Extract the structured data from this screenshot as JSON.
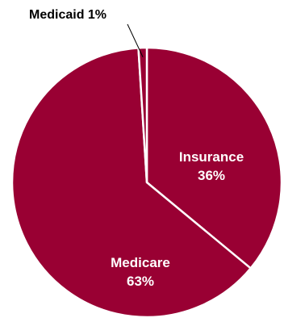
{
  "chart_data": {
    "type": "pie",
    "title": "",
    "slices": [
      {
        "label": "Insurance",
        "value": 36,
        "value_label": "36%",
        "color": "#990033"
      },
      {
        "label": "Medicare",
        "value": 63,
        "value_label": "63%",
        "color": "#990033"
      },
      {
        "label": "Medicaid",
        "value": 1,
        "value_label": "1%",
        "color": "#990033"
      }
    ],
    "start": "12 o'clock",
    "direction": "clockwise",
    "slice_border_color": "#ffffff",
    "callout_line_color": "#000000",
    "label_color_inside": "#ffffff",
    "label_color_outside": "#000000",
    "legend": "none"
  }
}
